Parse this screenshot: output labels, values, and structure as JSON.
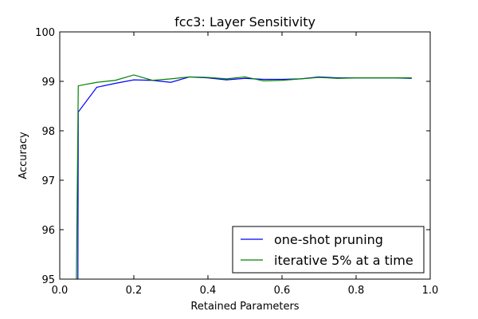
{
  "chart_data": {
    "type": "line",
    "title": "fcc3: Layer Sensitivity",
    "xlabel": "Retained Parameters",
    "ylabel": "Accuracy",
    "xlim": [
      0.0,
      1.0
    ],
    "ylim": [
      95,
      100
    ],
    "xticks": [
      0.0,
      0.2,
      0.4,
      0.6,
      0.8,
      1.0
    ],
    "xtick_labels": [
      "0.0",
      "0.2",
      "0.4",
      "0.6",
      "0.8",
      "1.0"
    ],
    "yticks": [
      95,
      96,
      97,
      98,
      99,
      100
    ],
    "ytick_labels": [
      "95",
      "96",
      "97",
      "98",
      "99",
      "100"
    ],
    "grid": false,
    "legend_position": "bottom-right",
    "series": [
      {
        "name": "one-shot pruning",
        "color": "#0000ff",
        "x": [
          0.049,
          0.05,
          0.1,
          0.15,
          0.2,
          0.25,
          0.3,
          0.35,
          0.4,
          0.45,
          0.5,
          0.55,
          0.6,
          0.65,
          0.7,
          0.75,
          0.8,
          0.85,
          0.9,
          0.95
        ],
        "y": [
          95.0,
          98.38,
          98.88,
          98.96,
          99.03,
          99.02,
          98.98,
          99.09,
          99.07,
          99.03,
          99.06,
          99.04,
          99.04,
          99.05,
          99.09,
          99.07,
          99.07,
          99.07,
          99.07,
          99.06
        ]
      },
      {
        "name": "iterative 5% at a time",
        "color": "#008000",
        "x": [
          0.045,
          0.05,
          0.1,
          0.15,
          0.2,
          0.25,
          0.3,
          0.35,
          0.4,
          0.45,
          0.5,
          0.55,
          0.6,
          0.65,
          0.7,
          0.75,
          0.8,
          0.85,
          0.9,
          0.95
        ],
        "y": [
          95.0,
          98.91,
          98.98,
          99.02,
          99.13,
          99.02,
          99.05,
          99.09,
          99.08,
          99.05,
          99.09,
          99.01,
          99.02,
          99.05,
          99.08,
          99.06,
          99.07,
          99.07,
          99.07,
          99.07
        ]
      }
    ]
  }
}
